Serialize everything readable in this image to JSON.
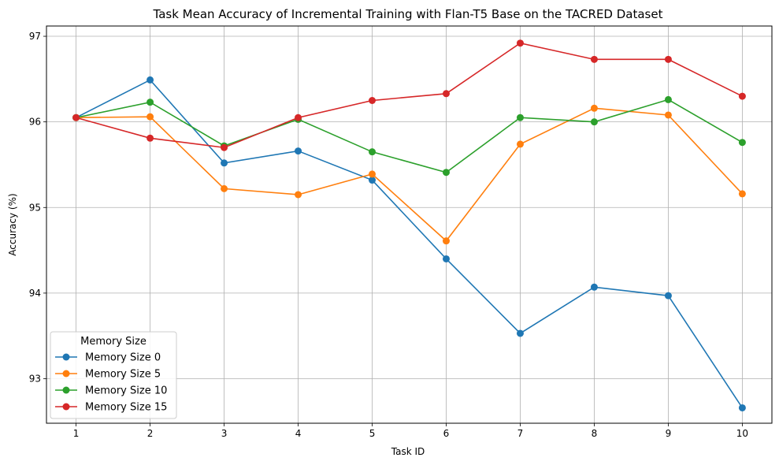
{
  "chart_data": {
    "type": "line",
    "title": "Task Mean Accuracy of Incremental Training with Flan-T5 Base on the TACRED Dataset",
    "xlabel": "Task ID",
    "ylabel": "Accuracy (%)",
    "x": [
      1,
      2,
      3,
      4,
      5,
      6,
      7,
      8,
      9,
      10
    ],
    "xticks": [
      "1",
      "2",
      "3",
      "4",
      "5",
      "6",
      "7",
      "8",
      "9",
      "10"
    ],
    "yticks": [
      93,
      94,
      95,
      96,
      97
    ],
    "ytick_labels": [
      "93",
      "94",
      "95",
      "96",
      "97"
    ],
    "xlim": [
      0.6,
      10.4
    ],
    "ylim": [
      92.48,
      97.12
    ],
    "grid": true,
    "legend": {
      "title": "Memory Size",
      "placement": "lower-left"
    },
    "series": [
      {
        "name": "Memory Size 0",
        "color": "#1f77b4",
        "values": [
          96.05,
          96.49,
          95.52,
          95.66,
          95.32,
          94.4,
          93.53,
          94.07,
          93.97,
          92.66
        ]
      },
      {
        "name": "Memory Size 5",
        "color": "#ff7f0e",
        "values": [
          96.05,
          96.06,
          95.22,
          95.15,
          95.39,
          94.61,
          95.74,
          96.16,
          96.08,
          95.16
        ]
      },
      {
        "name": "Memory Size 10",
        "color": "#2ca02c",
        "values": [
          96.05,
          96.23,
          95.72,
          96.03,
          95.65,
          95.41,
          96.05,
          96.0,
          96.26,
          95.76
        ]
      },
      {
        "name": "Memory Size 15",
        "color": "#d62728",
        "values": [
          96.05,
          95.81,
          95.7,
          96.05,
          96.25,
          96.33,
          96.92,
          96.73,
          96.73,
          96.3
        ]
      }
    ]
  }
}
